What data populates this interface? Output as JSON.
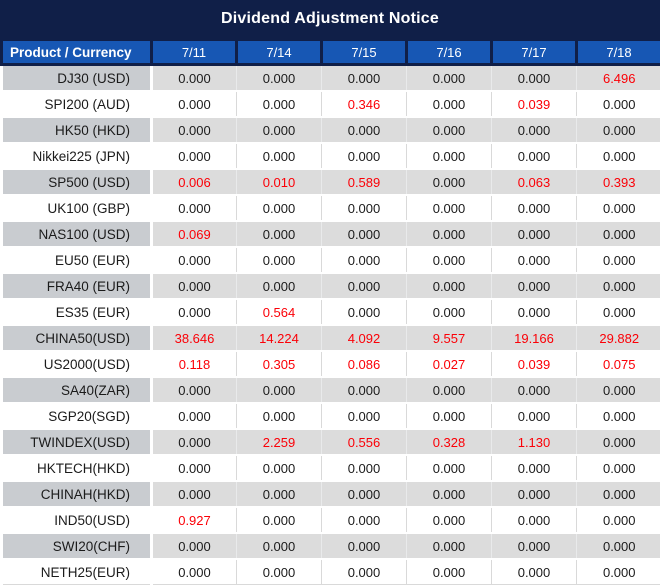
{
  "title": "Dividend Adjustment Notice",
  "colors": {
    "title_bar_bg": "#101f48",
    "header_bg": "#1757b4",
    "header_text": "#ffffff",
    "row_gray_product": "#c9ccd0",
    "row_gray_data": "#dcdcdc",
    "row_white": "#ffffff",
    "value_text": "#1b1b1b",
    "value_red": "#fb0007"
  },
  "table": {
    "product_header": "Product / Currency",
    "date_headers": [
      "7/11",
      "7/14",
      "7/15",
      "7/16",
      "7/17",
      "7/18"
    ],
    "rows": [
      {
        "product": "DJ30 (USD)",
        "values": [
          {
            "v": "0.000",
            "red": false
          },
          {
            "v": "0.000",
            "red": false
          },
          {
            "v": "0.000",
            "red": false
          },
          {
            "v": "0.000",
            "red": false
          },
          {
            "v": "0.000",
            "red": false
          },
          {
            "v": "6.496",
            "red": true
          }
        ]
      },
      {
        "product": "SPI200 (AUD)",
        "values": [
          {
            "v": "0.000",
            "red": false
          },
          {
            "v": "0.000",
            "red": false
          },
          {
            "v": "0.346",
            "red": true
          },
          {
            "v": "0.000",
            "red": false
          },
          {
            "v": "0.039",
            "red": true
          },
          {
            "v": "0.000",
            "red": false
          }
        ]
      },
      {
        "product": "HK50 (HKD)",
        "values": [
          {
            "v": "0.000",
            "red": false
          },
          {
            "v": "0.000",
            "red": false
          },
          {
            "v": "0.000",
            "red": false
          },
          {
            "v": "0.000",
            "red": false
          },
          {
            "v": "0.000",
            "red": false
          },
          {
            "v": "0.000",
            "red": false
          }
        ]
      },
      {
        "product": "Nikkei225 (JPN)",
        "values": [
          {
            "v": "0.000",
            "red": false
          },
          {
            "v": "0.000",
            "red": false
          },
          {
            "v": "0.000",
            "red": false
          },
          {
            "v": "0.000",
            "red": false
          },
          {
            "v": "0.000",
            "red": false
          },
          {
            "v": "0.000",
            "red": false
          }
        ]
      },
      {
        "product": "SP500 (USD)",
        "values": [
          {
            "v": "0.006",
            "red": true
          },
          {
            "v": "0.010",
            "red": true
          },
          {
            "v": "0.589",
            "red": true
          },
          {
            "v": "0.000",
            "red": false
          },
          {
            "v": "0.063",
            "red": true
          },
          {
            "v": "0.393",
            "red": true
          }
        ]
      },
      {
        "product": "UK100 (GBP)",
        "values": [
          {
            "v": "0.000",
            "red": false
          },
          {
            "v": "0.000",
            "red": false
          },
          {
            "v": "0.000",
            "red": false
          },
          {
            "v": "0.000",
            "red": false
          },
          {
            "v": "0.000",
            "red": false
          },
          {
            "v": "0.000",
            "red": false
          }
        ]
      },
      {
        "product": "NAS100 (USD)",
        "values": [
          {
            "v": "0.069",
            "red": true
          },
          {
            "v": "0.000",
            "red": false
          },
          {
            "v": "0.000",
            "red": false
          },
          {
            "v": "0.000",
            "red": false
          },
          {
            "v": "0.000",
            "red": false
          },
          {
            "v": "0.000",
            "red": false
          }
        ]
      },
      {
        "product": "EU50 (EUR)",
        "values": [
          {
            "v": "0.000",
            "red": false
          },
          {
            "v": "0.000",
            "red": false
          },
          {
            "v": "0.000",
            "red": false
          },
          {
            "v": "0.000",
            "red": false
          },
          {
            "v": "0.000",
            "red": false
          },
          {
            "v": "0.000",
            "red": false
          }
        ]
      },
      {
        "product": "FRA40 (EUR)",
        "values": [
          {
            "v": "0.000",
            "red": false
          },
          {
            "v": "0.000",
            "red": false
          },
          {
            "v": "0.000",
            "red": false
          },
          {
            "v": "0.000",
            "red": false
          },
          {
            "v": "0.000",
            "red": false
          },
          {
            "v": "0.000",
            "red": false
          }
        ]
      },
      {
        "product": "ES35 (EUR)",
        "values": [
          {
            "v": "0.000",
            "red": false
          },
          {
            "v": "0.564",
            "red": true
          },
          {
            "v": "0.000",
            "red": false
          },
          {
            "v": "0.000",
            "red": false
          },
          {
            "v": "0.000",
            "red": false
          },
          {
            "v": "0.000",
            "red": false
          }
        ]
      },
      {
        "product": "CHINA50(USD)",
        "values": [
          {
            "v": "38.646",
            "red": true
          },
          {
            "v": "14.224",
            "red": true
          },
          {
            "v": "4.092",
            "red": true
          },
          {
            "v": "9.557",
            "red": true
          },
          {
            "v": "19.166",
            "red": true
          },
          {
            "v": "29.882",
            "red": true
          }
        ]
      },
      {
        "product": "US2000(USD)",
        "values": [
          {
            "v": "0.118",
            "red": true
          },
          {
            "v": "0.305",
            "red": true
          },
          {
            "v": "0.086",
            "red": true
          },
          {
            "v": "0.027",
            "red": true
          },
          {
            "v": "0.039",
            "red": true
          },
          {
            "v": "0.075",
            "red": true
          }
        ]
      },
      {
        "product": "SA40(ZAR)",
        "values": [
          {
            "v": "0.000",
            "red": false
          },
          {
            "v": "0.000",
            "red": false
          },
          {
            "v": "0.000",
            "red": false
          },
          {
            "v": "0.000",
            "red": false
          },
          {
            "v": "0.000",
            "red": false
          },
          {
            "v": "0.000",
            "red": false
          }
        ]
      },
      {
        "product": "SGP20(SGD)",
        "values": [
          {
            "v": "0.000",
            "red": false
          },
          {
            "v": "0.000",
            "red": false
          },
          {
            "v": "0.000",
            "red": false
          },
          {
            "v": "0.000",
            "red": false
          },
          {
            "v": "0.000",
            "red": false
          },
          {
            "v": "0.000",
            "red": false
          }
        ]
      },
      {
        "product": "TWINDEX(USD)",
        "values": [
          {
            "v": "0.000",
            "red": false
          },
          {
            "v": "2.259",
            "red": true
          },
          {
            "v": "0.556",
            "red": true
          },
          {
            "v": "0.328",
            "red": true
          },
          {
            "v": "1.130",
            "red": true
          },
          {
            "v": "0.000",
            "red": false
          }
        ]
      },
      {
        "product": "HKTECH(HKD)",
        "values": [
          {
            "v": "0.000",
            "red": false
          },
          {
            "v": "0.000",
            "red": false
          },
          {
            "v": "0.000",
            "red": false
          },
          {
            "v": "0.000",
            "red": false
          },
          {
            "v": "0.000",
            "red": false
          },
          {
            "v": "0.000",
            "red": false
          }
        ]
      },
      {
        "product": "CHINAH(HKD)",
        "values": [
          {
            "v": "0.000",
            "red": false
          },
          {
            "v": "0.000",
            "red": false
          },
          {
            "v": "0.000",
            "red": false
          },
          {
            "v": "0.000",
            "red": false
          },
          {
            "v": "0.000",
            "red": false
          },
          {
            "v": "0.000",
            "red": false
          }
        ]
      },
      {
        "product": "IND50(USD)",
        "values": [
          {
            "v": "0.927",
            "red": true
          },
          {
            "v": "0.000",
            "red": false
          },
          {
            "v": "0.000",
            "red": false
          },
          {
            "v": "0.000",
            "red": false
          },
          {
            "v": "0.000",
            "red": false
          },
          {
            "v": "0.000",
            "red": false
          }
        ]
      },
      {
        "product": "SWI20(CHF)",
        "values": [
          {
            "v": "0.000",
            "red": false
          },
          {
            "v": "0.000",
            "red": false
          },
          {
            "v": "0.000",
            "red": false
          },
          {
            "v": "0.000",
            "red": false
          },
          {
            "v": "0.000",
            "red": false
          },
          {
            "v": "0.000",
            "red": false
          }
        ]
      },
      {
        "product": "NETH25(EUR)",
        "values": [
          {
            "v": "0.000",
            "red": false
          },
          {
            "v": "0.000",
            "red": false
          },
          {
            "v": "0.000",
            "red": false
          },
          {
            "v": "0.000",
            "red": false
          },
          {
            "v": "0.000",
            "red": false
          },
          {
            "v": "0.000",
            "red": false
          }
        ]
      }
    ]
  }
}
